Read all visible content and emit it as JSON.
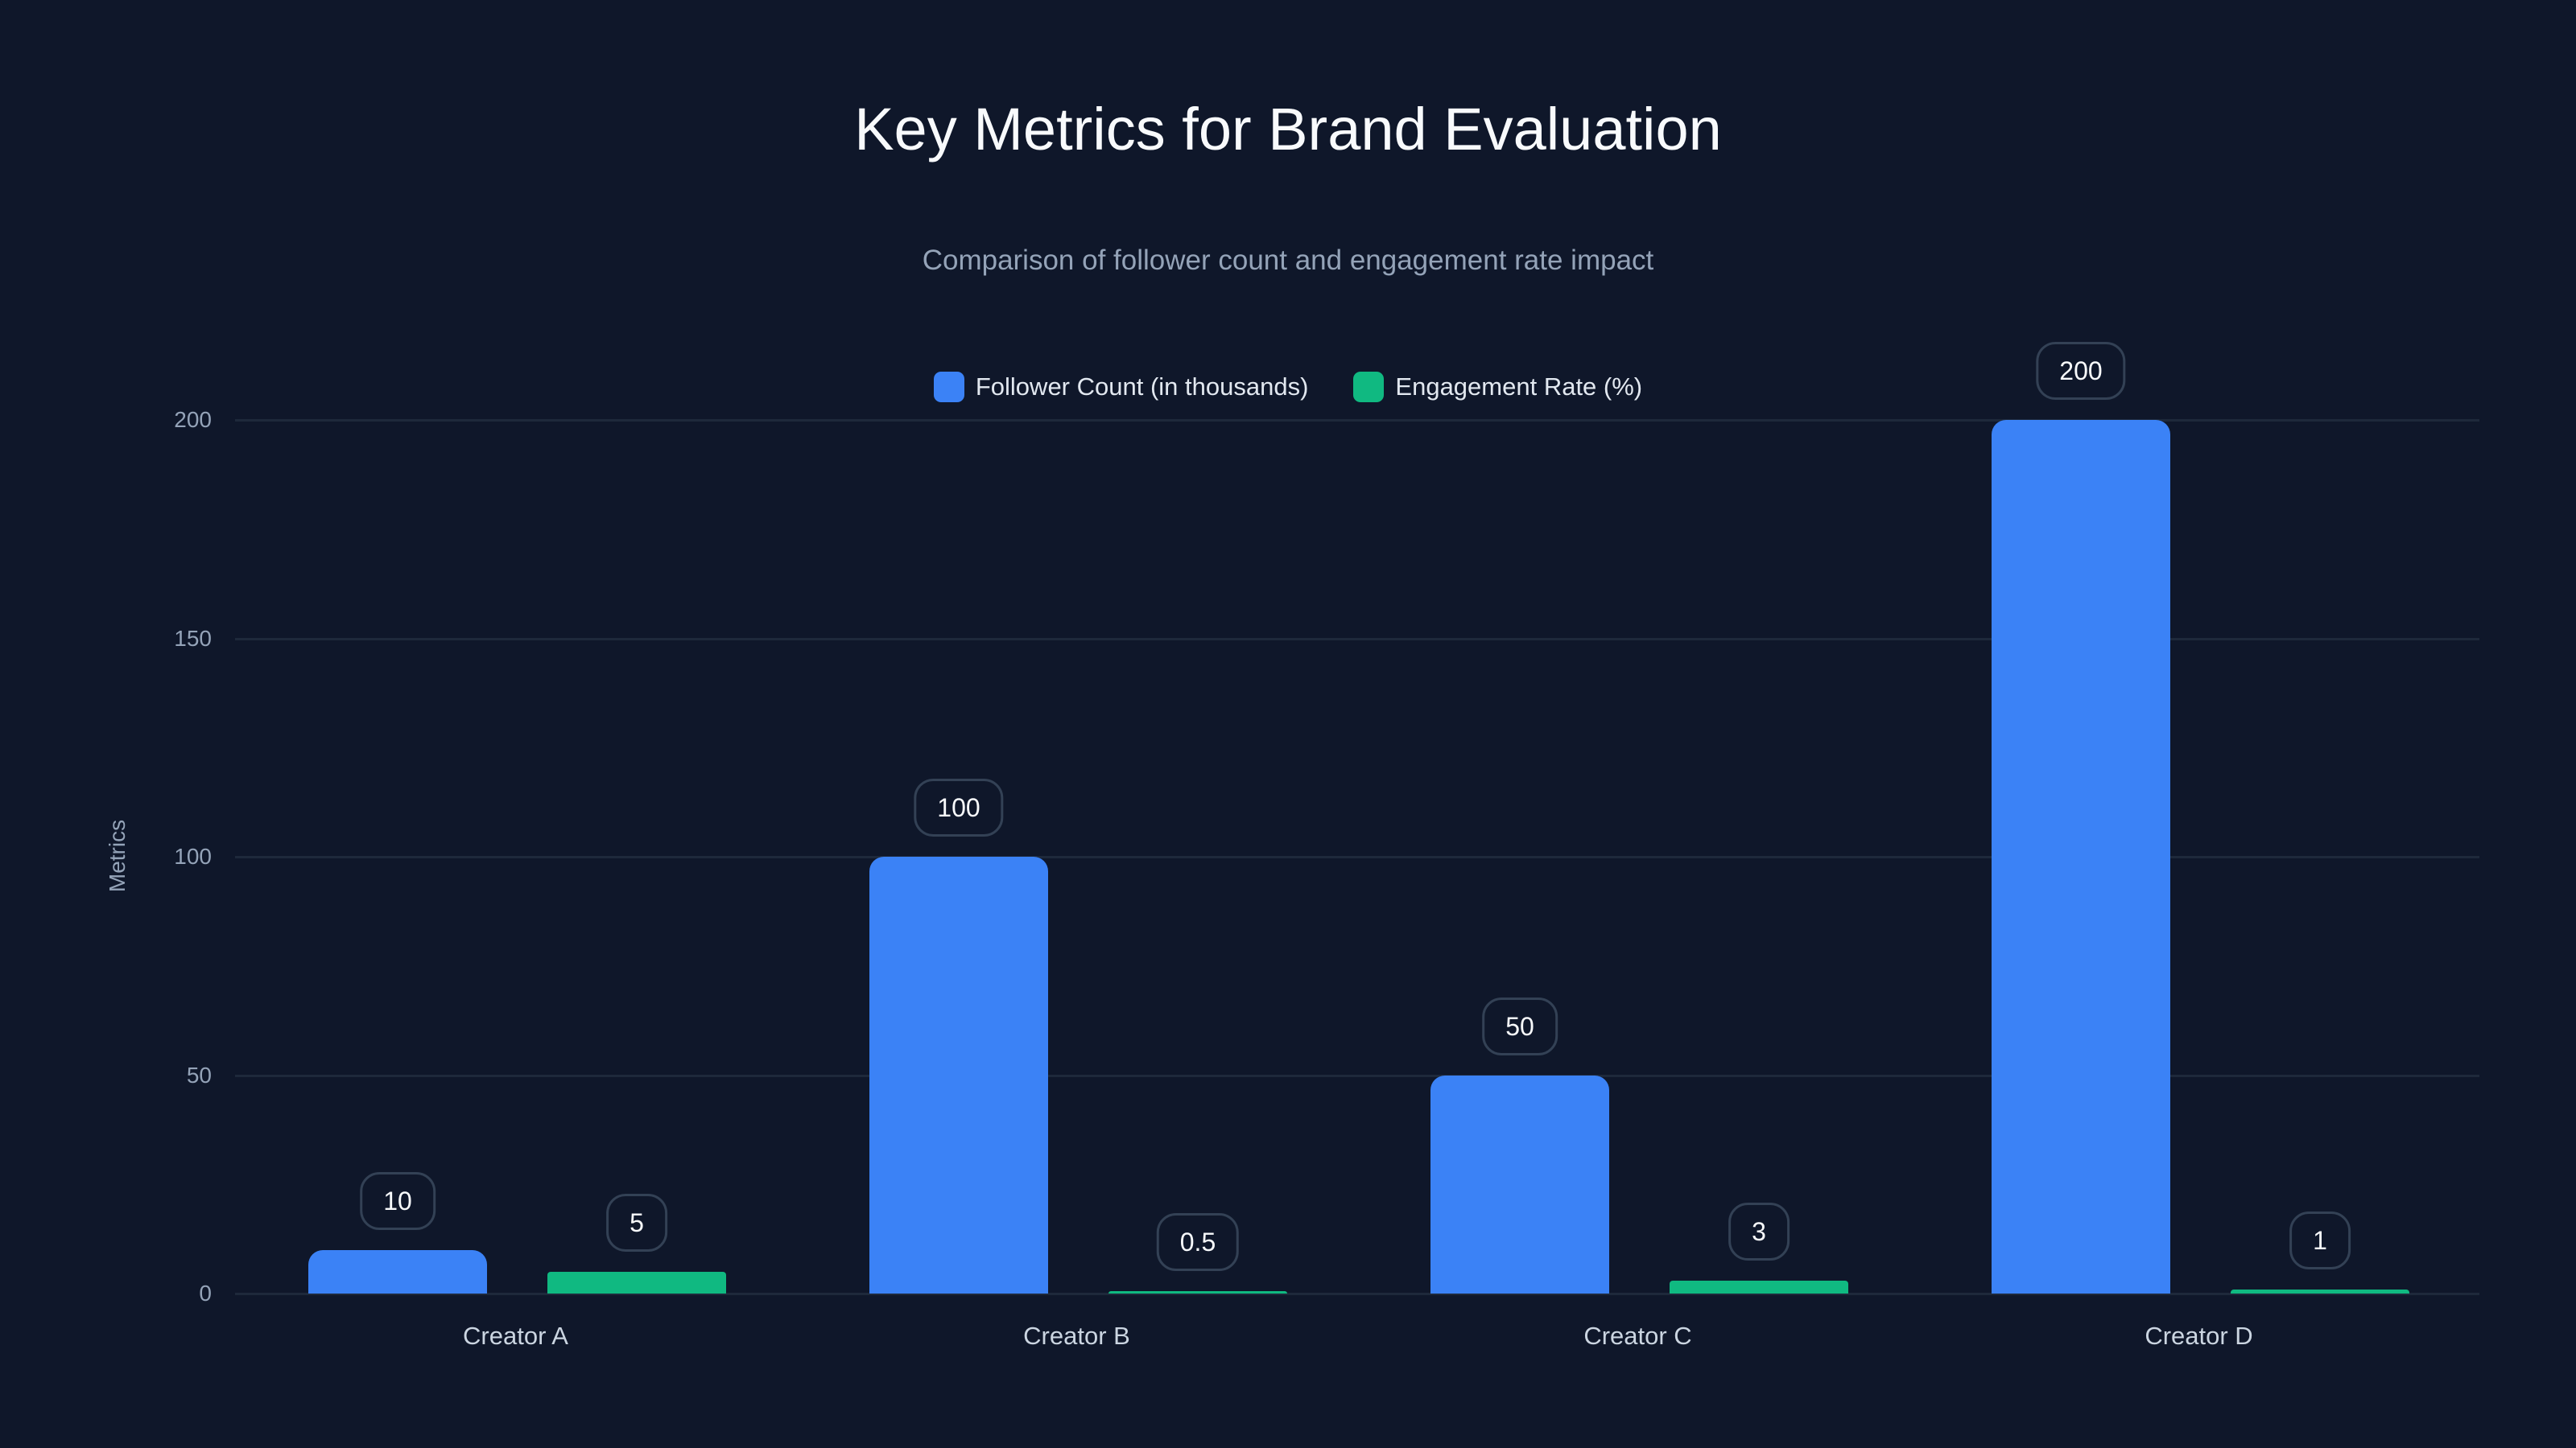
{
  "chart_data": {
    "type": "bar",
    "title": "Key Metrics for Brand Evaluation",
    "subtitle": "Comparison of follower count and engagement rate impact",
    "xlabel": "",
    "ylabel": "Metrics",
    "ylim": [
      0,
      200
    ],
    "yticks": [
      "0",
      "50",
      "100",
      "150",
      "200"
    ],
    "categories": [
      "Creator A",
      "Creator B",
      "Creator C",
      "Creator D"
    ],
    "series": [
      {
        "name": "Follower Count (in thousands)",
        "color": "#3b82f6",
        "values": [
          10,
          100,
          50,
          200
        ],
        "labels": [
          "10",
          "100",
          "50",
          "200"
        ]
      },
      {
        "name": "Engagement Rate (%)",
        "color": "#10b981",
        "values": [
          5,
          0.5,
          3,
          1
        ],
        "labels": [
          "5",
          "0.5",
          "3",
          "1"
        ]
      }
    ],
    "legend_position": "top",
    "grid": true
  },
  "colors": {
    "background": "#0f172a",
    "grid": "#1e293b",
    "follower": "#3b82f6",
    "engagement": "#10b981"
  }
}
